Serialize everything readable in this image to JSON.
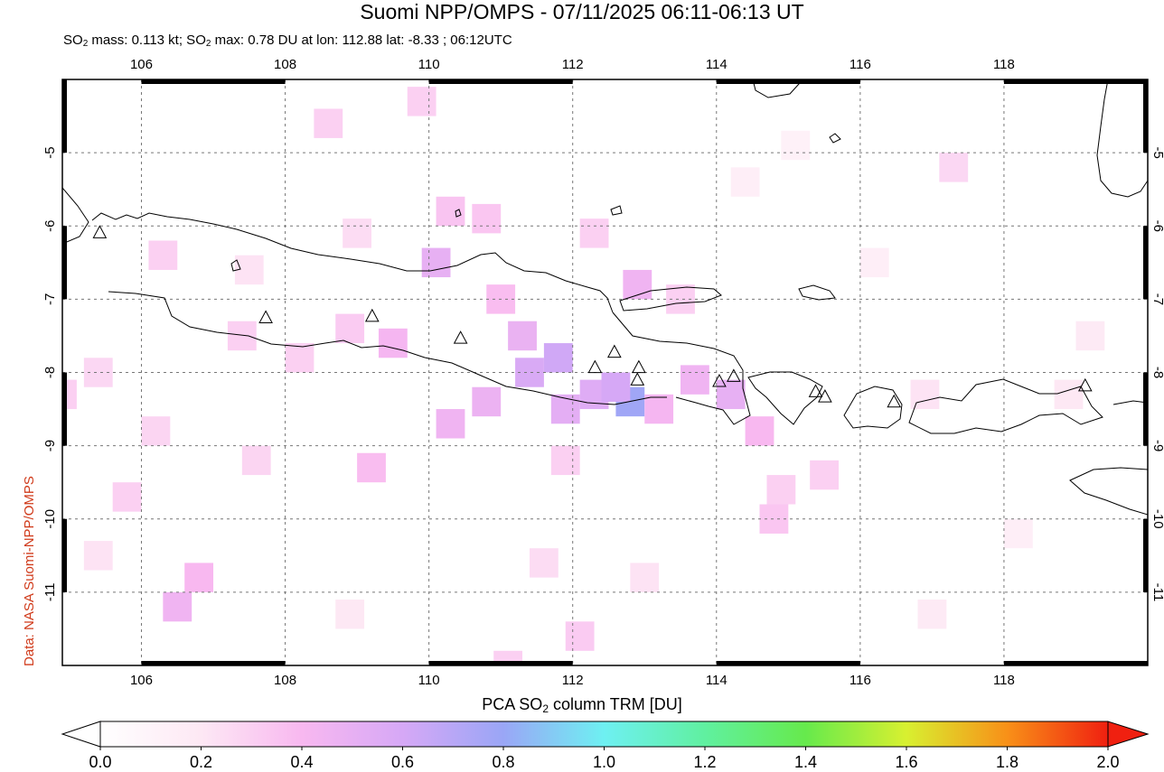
{
  "header": {
    "title": "Suomi NPP/OMPS - 07/11/2025 06:11-06:13 UT",
    "subtitle_pre": "SO",
    "subtitle_sub1": "2",
    "subtitle_mid": " mass: 0.113 kt; SO",
    "subtitle_sub2": "2",
    "subtitle_post": " max: 0.78 DU at lon: 112.88 lat: -8.33 ; 06:12UTC"
  },
  "credit": "Data: NASA Suomi-NPP/OMPS",
  "map": {
    "lon_range": [
      104.9,
      120.0
    ],
    "lat_range": [
      -12.0,
      -4.0
    ],
    "lon_ticks": [
      106,
      108,
      110,
      112,
      114,
      116,
      118
    ],
    "lat_ticks": [
      -5,
      -6,
      -7,
      -8,
      -9,
      -10,
      -11
    ],
    "lon_tick_labels": [
      "106",
      "108",
      "110",
      "112",
      "114",
      "116",
      "118"
    ],
    "lat_tick_labels": [
      "-5",
      "-6",
      "-7",
      "-8",
      "-9",
      "-10",
      "-11"
    ],
    "grid": true,
    "coastline_color": "#000000",
    "volcanoes": [
      [
        105.42,
        -6.1
      ],
      [
        107.73,
        -7.26
      ],
      [
        109.21,
        -7.24
      ],
      [
        110.44,
        -7.54
      ],
      [
        112.31,
        -7.94
      ],
      [
        112.58,
        -7.73
      ],
      [
        112.92,
        -7.94
      ],
      [
        112.9,
        -8.11
      ],
      [
        114.04,
        -8.13
      ],
      [
        114.24,
        -8.06
      ],
      [
        115.38,
        -8.27
      ],
      [
        115.51,
        -8.34
      ],
      [
        116.47,
        -8.41
      ],
      [
        119.13,
        -8.19
      ]
    ],
    "so2_cells": [
      [
        111.8,
        -7.8,
        0.62
      ],
      [
        111.4,
        -8.0,
        0.58
      ],
      [
        112.3,
        -8.3,
        0.55
      ],
      [
        112.8,
        -8.4,
        0.78
      ],
      [
        112.6,
        -8.2,
        0.6
      ],
      [
        111.9,
        -8.5,
        0.52
      ],
      [
        111.3,
        -7.5,
        0.48
      ],
      [
        110.8,
        -8.4,
        0.47
      ],
      [
        110.3,
        -8.7,
        0.45
      ],
      [
        110.1,
        -6.5,
        0.5
      ],
      [
        112.9,
        -6.8,
        0.45
      ],
      [
        114.2,
        -8.3,
        0.5
      ],
      [
        113.7,
        -8.1,
        0.45
      ],
      [
        114.6,
        -8.8,
        0.4
      ],
      [
        113.2,
        -8.5,
        0.42
      ],
      [
        111.0,
        -7.0,
        0.38
      ],
      [
        109.5,
        -7.6,
        0.42
      ],
      [
        108.9,
        -7.4,
        0.32
      ],
      [
        108.2,
        -7.8,
        0.3
      ],
      [
        107.4,
        -7.5,
        0.3
      ],
      [
        106.5,
        -11.2,
        0.45
      ],
      [
        106.8,
        -10.8,
        0.4
      ],
      [
        109.2,
        -9.3,
        0.38
      ],
      [
        110.8,
        -5.9,
        0.34
      ],
      [
        112.3,
        -6.1,
        0.3
      ],
      [
        114.8,
        -10.0,
        0.34
      ],
      [
        105.8,
        -9.7,
        0.3
      ],
      [
        106.2,
        -8.8,
        0.28
      ],
      [
        117.3,
        -5.2,
        0.27
      ],
      [
        104.9,
        -8.3,
        0.3
      ],
      [
        105.4,
        -8.0,
        0.27
      ],
      [
        108.6,
        -4.6,
        0.3
      ],
      [
        109.9,
        -4.3,
        0.3
      ],
      [
        110.3,
        -5.8,
        0.35
      ],
      [
        111.9,
        -9.2,
        0.3
      ],
      [
        113.5,
        -7.0,
        0.3
      ],
      [
        112.1,
        -11.6,
        0.32
      ],
      [
        111.1,
        -12.0,
        0.3
      ],
      [
        115.5,
        -9.4,
        0.3
      ],
      [
        114.9,
        -9.6,
        0.3
      ],
      [
        107.6,
        -9.2,
        0.28
      ],
      [
        116.9,
        -8.3,
        0.22
      ],
      [
        118.9,
        -8.3,
        0.2
      ],
      [
        106.3,
        -6.4,
        0.3
      ],
      [
        107.5,
        -6.6,
        0.22
      ],
      [
        109.0,
        -6.1,
        0.25
      ],
      [
        105.4,
        -10.5,
        0.22
      ],
      [
        113.0,
        -10.8,
        0.22
      ],
      [
        111.6,
        -10.6,
        0.25
      ],
      [
        108.9,
        -11.3,
        0.2
      ],
      [
        117.0,
        -11.3,
        0.18
      ],
      [
        119.2,
        -7.5,
        0.18
      ],
      [
        118.2,
        -10.2,
        0.15
      ],
      [
        116.2,
        -6.5,
        0.15
      ],
      [
        114.4,
        -5.4,
        0.15
      ],
      [
        115.1,
        -4.9,
        0.12
      ]
    ]
  },
  "colorbar": {
    "title_pre": "PCA SO",
    "title_sub": "2",
    "title_post": " column TRM [DU]",
    "vmin": 0.0,
    "vmax": 2.0,
    "tick_labels": [
      "0.0",
      "0.2",
      "0.4",
      "0.6",
      "0.8",
      "1.0",
      "1.2",
      "1.4",
      "1.6",
      "1.8",
      "2.0"
    ],
    "stops": [
      "#ffffff",
      "#fde8f4",
      "#f8b8f0",
      "#d6a8f6",
      "#9aa6f6",
      "#6ef0f2",
      "#60f0a0",
      "#66ea4c",
      "#d8f030",
      "#f89018",
      "#f02010"
    ],
    "under_color": "#ffffff",
    "over_color": "#f02010"
  }
}
